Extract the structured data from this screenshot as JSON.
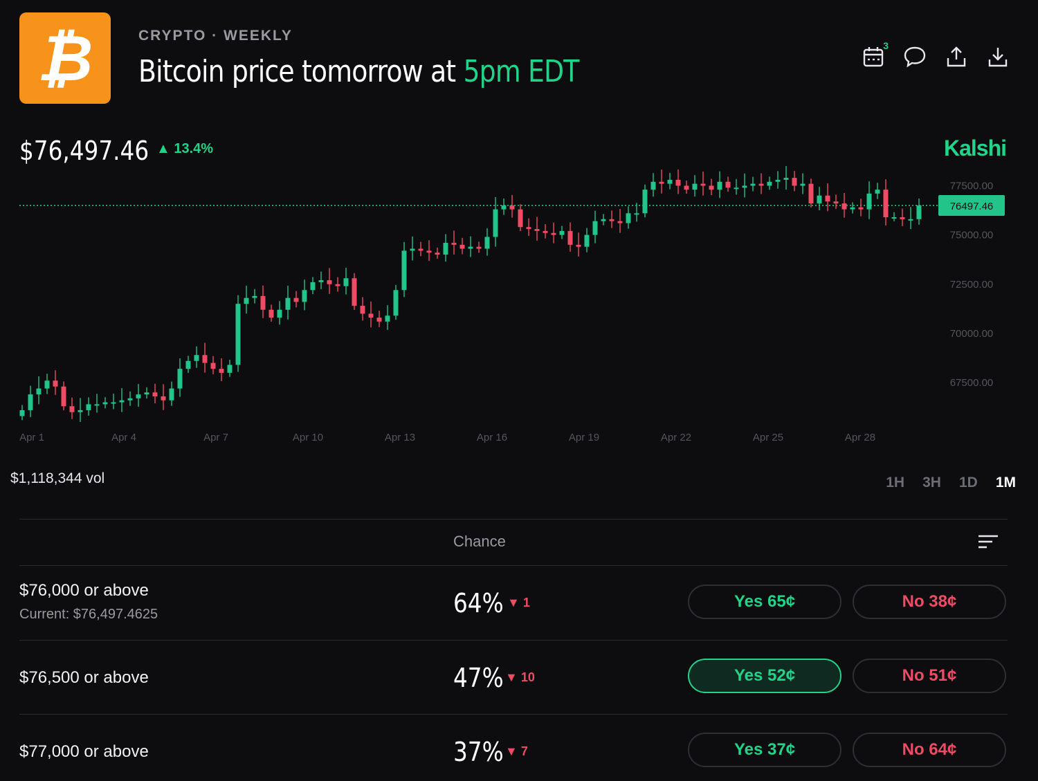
{
  "header": {
    "logo_glyph": "₿",
    "category": "CRYPTO · WEEKLY",
    "title_main": "Bitcoin price tomorrow at ",
    "title_highlight": "5pm EDT",
    "calendar_badge": "3",
    "icons": [
      "calendar-icon",
      "comment-icon",
      "share-icon",
      "download-icon"
    ]
  },
  "summary": {
    "price": "$76,497.46",
    "change": "▲ 13.4%",
    "brand": "Kalshi",
    "volume": "$1,118,344 vol"
  },
  "ranges": [
    "1H",
    "3H",
    "1D",
    "1M"
  ],
  "active_range": "1M",
  "chart_data": {
    "type": "candlestick",
    "x_labels": [
      "Apr 1",
      "Apr 4",
      "Apr 7",
      "Apr 10",
      "Apr 13",
      "Apr 16",
      "Apr 19",
      "Apr 22",
      "Apr 25",
      "Apr 28"
    ],
    "y_ticks": [
      "77500.00",
      "75000.00",
      "72500.00",
      "70000.00",
      "67500.00"
    ],
    "ylim": [
      65500,
      78500
    ],
    "current_price": 76497.46,
    "current_label": "76497.46",
    "colors": {
      "up": "#22c48a",
      "down": "#ef4b64",
      "grid": "#22d38a"
    },
    "closes": [
      66100,
      66900,
      67200,
      67600,
      67300,
      66300,
      66000,
      66100,
      66400,
      66400,
      66500,
      66500,
      66600,
      66700,
      66900,
      67000,
      66800,
      66600,
      67200,
      68200,
      68600,
      68900,
      68500,
      68200,
      68000,
      68400,
      71500,
      71800,
      71900,
      71200,
      70800,
      71200,
      71800,
      71600,
      72200,
      72600,
      72700,
      72500,
      72400,
      72800,
      71400,
      71000,
      70800,
      70600,
      70900,
      72200,
      74200,
      74300,
      74200,
      74100,
      74000,
      74600,
      74500,
      74300,
      74400,
      74300,
      74900,
      76300,
      76500,
      76300,
      75400,
      75300,
      75200,
      75100,
      75000,
      75200,
      74500,
      74400,
      75000,
      75700,
      75800,
      75700,
      75600,
      76100,
      76100,
      77300,
      77700,
      77600,
      77800,
      77500,
      77300,
      77600,
      77500,
      77300,
      77700,
      77400,
      77400,
      77500,
      77600,
      77500,
      77700,
      77800,
      77900,
      77500,
      77600,
      76600,
      77000,
      76700,
      76600,
      76300,
      76400,
      76300,
      77100,
      77300,
      75900,
      75900,
      75800,
      75800,
      76500
    ]
  },
  "table": {
    "chance_header": "Chance",
    "rows": [
      {
        "label": "$76,000 or above",
        "sub": "Current: $76,497.4625",
        "chance": "64%",
        "delta": "▼ 1",
        "yes": "Yes 65¢",
        "no": "No 38¢",
        "selected": false
      },
      {
        "label": "$76,500 or above",
        "sub": "",
        "chance": "47%",
        "delta": "▼ 10",
        "yes": "Yes 52¢",
        "no": "No 51¢",
        "selected": true
      },
      {
        "label": "$77,000 or above",
        "sub": "",
        "chance": "37%",
        "delta": "▼ 7",
        "yes": "Yes 37¢",
        "no": "No 64¢",
        "selected": false
      }
    ]
  }
}
